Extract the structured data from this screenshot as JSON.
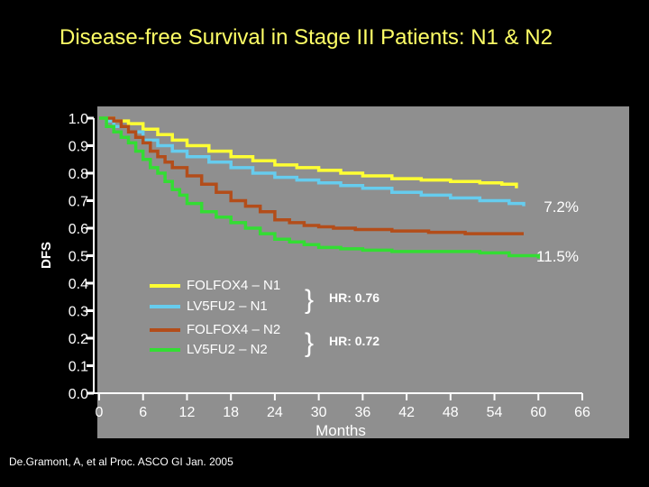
{
  "title": "Disease-free Survival in Stage III Patients: N1 & N2",
  "citation": "De.Gramont, A, et al Proc. ASCO GI Jan. 2005",
  "chart_data": {
    "type": "line",
    "title": "Disease-free Survival in Stage III Patients: N1 & N2",
    "xlabel": "Months",
    "ylabel": "DFS",
    "xlim": [
      0,
      66
    ],
    "ylim": [
      0,
      1.0
    ],
    "x_ticks": [
      0,
      6,
      12,
      18,
      24,
      30,
      36,
      42,
      48,
      54,
      60,
      66
    ],
    "y_ticks": [
      0.0,
      0.1,
      0.2,
      0.3,
      0.4,
      0.5,
      0.6,
      0.7,
      0.8,
      0.9,
      1.0
    ],
    "y_tick_labels": [
      "0.0",
      "0.1",
      "0.2",
      "0.3",
      "0.4",
      "0.5",
      "0.6",
      "0.7",
      "0.8",
      "0.9",
      "1.0"
    ],
    "series": [
      {
        "name": "FOLFOX4 – N1",
        "color": "#ffff33",
        "x": [
          0,
          2,
          4,
          6,
          8,
          10,
          12,
          15,
          18,
          21,
          24,
          27,
          30,
          33,
          36,
          40,
          44,
          48,
          52,
          55,
          57
        ],
        "y": [
          1.0,
          0.99,
          0.98,
          0.96,
          0.94,
          0.92,
          0.9,
          0.88,
          0.86,
          0.845,
          0.83,
          0.82,
          0.81,
          0.8,
          0.79,
          0.78,
          0.775,
          0.77,
          0.765,
          0.76,
          0.745
        ]
      },
      {
        "name": "LV5FU2 – N1",
        "color": "#66ccee",
        "x": [
          0,
          1,
          2,
          4,
          6,
          8,
          10,
          12,
          15,
          18,
          21,
          24,
          27,
          30,
          33,
          36,
          40,
          44,
          48,
          52,
          56,
          58
        ],
        "y": [
          1.0,
          0.99,
          0.97,
          0.95,
          0.92,
          0.9,
          0.88,
          0.86,
          0.84,
          0.82,
          0.8,
          0.785,
          0.775,
          0.765,
          0.755,
          0.745,
          0.73,
          0.72,
          0.71,
          0.7,
          0.69,
          0.68
        ]
      },
      {
        "name": "FOLFOX4 – N2",
        "color": "#b34d1a",
        "x": [
          0,
          2,
          3,
          4,
          5,
          6,
          7,
          8,
          9,
          10,
          12,
          14,
          16,
          18,
          20,
          22,
          24,
          26,
          28,
          30,
          32,
          35,
          40,
          45,
          50,
          55,
          58
        ],
        "y": [
          1.0,
          0.99,
          0.97,
          0.95,
          0.93,
          0.91,
          0.88,
          0.86,
          0.84,
          0.82,
          0.79,
          0.76,
          0.73,
          0.7,
          0.68,
          0.66,
          0.63,
          0.62,
          0.61,
          0.605,
          0.6,
          0.595,
          0.59,
          0.585,
          0.58,
          0.58,
          0.58
        ]
      },
      {
        "name": "LV5FU2 – N2",
        "color": "#33dd33",
        "x": [
          0,
          1,
          2,
          3,
          4,
          5,
          6,
          7,
          8,
          9,
          10,
          11,
          12,
          14,
          16,
          18,
          20,
          22,
          24,
          26,
          28,
          30,
          33,
          36,
          40,
          44,
          48,
          52,
          56,
          60
        ],
        "y": [
          1.0,
          0.97,
          0.95,
          0.93,
          0.91,
          0.88,
          0.85,
          0.82,
          0.8,
          0.77,
          0.74,
          0.72,
          0.69,
          0.66,
          0.64,
          0.62,
          0.6,
          0.58,
          0.56,
          0.55,
          0.54,
          0.53,
          0.525,
          0.52,
          0.515,
          0.515,
          0.515,
          0.51,
          0.5,
          0.49
        ]
      }
    ],
    "legend": [
      {
        "label": "FOLFOX4 – N1",
        "color": "#ffff33"
      },
      {
        "label": "LV5FU2    – N1",
        "color": "#66ccee"
      },
      {
        "label": "FOLFOX4 – N2",
        "color": "#b34d1a"
      },
      {
        "label": "LV5FU2    – N2",
        "color": "#33dd33"
      }
    ],
    "legend_brace": "}",
    "hazard_ratios": [
      {
        "group": "N1",
        "label": "HR: 0.76"
      },
      {
        "group": "N2",
        "label": "HR: 0.72"
      }
    ],
    "annotations": [
      {
        "text": "7.2%",
        "group": "N1"
      },
      {
        "text": "11.5%",
        "group": "N2"
      }
    ]
  }
}
